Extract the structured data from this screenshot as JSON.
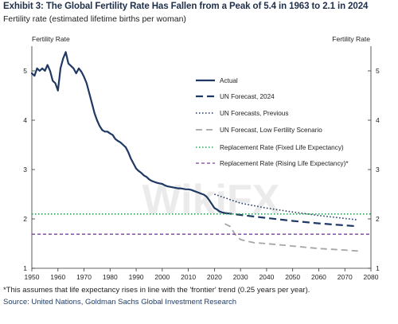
{
  "header": {
    "title": "Exhibit 3: The Global Fertility Rate Has Fallen from a Peak of 5.4 in 1963 to 2.1 in 2024",
    "subtitle": "Fertility rate (estimated lifetime births per woman)"
  },
  "footer": {
    "footnote": "*This assumes that life expectancy rises in line with the 'frontier' trend (0.25 years per year).",
    "source": "Source: United Nations, Goldman Sachs Global Investment Research"
  },
  "watermark": "WikiFX",
  "colors": {
    "actual": "#1f3864",
    "un_forecast": "#1f3864",
    "un_previous": "#1f3864",
    "low_fertility": "#a6a6a6",
    "replacement_fixed": "#2e9e5b",
    "replacement_rising": "#7b3fa0"
  },
  "chart_data": {
    "type": "line",
    "xlim": [
      1950,
      2080
    ],
    "ylim": [
      1,
      5.5
    ],
    "x_ticks": [
      "1950",
      "1960",
      "1970",
      "1980",
      "1990",
      "2000",
      "2010",
      "2020",
      "2030",
      "2040",
      "2050",
      "2060",
      "2070",
      "2080"
    ],
    "y_ticks": [
      "1",
      "2",
      "3",
      "4",
      "5"
    ],
    "ylabel_left": "Fertility Rate",
    "ylabel_right": "Fertility Rate",
    "grid": false,
    "legend_position": "right",
    "series": [
      {
        "name": "Actual",
        "style": "solid",
        "x": [
          1950,
          1951,
          1952,
          1953,
          1954,
          1955,
          1956,
          1957,
          1958,
          1959,
          1960,
          1961,
          1962,
          1963,
          1964,
          1965,
          1966,
          1967,
          1968,
          1969,
          1970,
          1971,
          1972,
          1973,
          1974,
          1975,
          1976,
          1977,
          1978,
          1979,
          1980,
          1981,
          1982,
          1983,
          1984,
          1985,
          1986,
          1987,
          1988,
          1989,
          1990,
          1991,
          1992,
          1993,
          1994,
          1995,
          1996,
          1997,
          1998,
          1999,
          2000,
          2001,
          2002,
          2003,
          2004,
          2005,
          2006,
          2007,
          2008,
          2009,
          2010,
          2011,
          2012,
          2013,
          2014,
          2015,
          2016,
          2017,
          2018,
          2019,
          2020,
          2021,
          2022,
          2023,
          2024
        ],
        "values": [
          4.95,
          4.9,
          5.05,
          5.0,
          5.05,
          5.0,
          5.12,
          5.0,
          4.8,
          4.75,
          4.6,
          5.05,
          5.25,
          5.38,
          5.15,
          5.1,
          5.05,
          4.95,
          5.05,
          4.98,
          4.88,
          4.75,
          4.55,
          4.35,
          4.15,
          4.0,
          3.88,
          3.8,
          3.77,
          3.77,
          3.73,
          3.7,
          3.62,
          3.58,
          3.55,
          3.5,
          3.45,
          3.35,
          3.22,
          3.12,
          3.02,
          2.97,
          2.93,
          2.88,
          2.85,
          2.8,
          2.77,
          2.75,
          2.73,
          2.72,
          2.71,
          2.68,
          2.66,
          2.65,
          2.64,
          2.63,
          2.62,
          2.62,
          2.61,
          2.6,
          2.6,
          2.59,
          2.57,
          2.55,
          2.53,
          2.51,
          2.49,
          2.45,
          2.38,
          2.3,
          2.22,
          2.19,
          2.15,
          2.13,
          2.12
        ]
      },
      {
        "name": "UN Forecast, 2024",
        "style": "dashed",
        "x": [
          2024,
          2030,
          2040,
          2050,
          2060,
          2070,
          2075
        ],
        "values": [
          2.12,
          2.08,
          2.02,
          1.96,
          1.91,
          1.87,
          1.85
        ]
      },
      {
        "name": "UN Forecasts, Previous",
        "style": "dotted",
        "x": [
          2020,
          2030,
          2040,
          2050,
          2060,
          2070,
          2075
        ],
        "values": [
          2.5,
          2.32,
          2.22,
          2.14,
          2.07,
          2.01,
          1.98
        ]
      },
      {
        "name": "UN Forecast, Low Fertility Scenario",
        "style": "dashed",
        "x": [
          2024,
          2026,
          2028,
          2030,
          2035,
          2040,
          2050,
          2060,
          2070,
          2075
        ],
        "values": [
          1.9,
          1.85,
          1.68,
          1.58,
          1.52,
          1.5,
          1.45,
          1.4,
          1.37,
          1.35
        ]
      },
      {
        "name": "Replacement Rate (Fixed Life Expectancy)",
        "style": "dotted",
        "x": [
          1950,
          2080
        ],
        "values": [
          2.1,
          2.1
        ]
      },
      {
        "name": "Replacement Rate (Rising Life Expectancy)*",
        "style": "dashed",
        "x": [
          1950,
          2080
        ],
        "values": [
          1.69,
          1.69
        ]
      }
    ]
  }
}
